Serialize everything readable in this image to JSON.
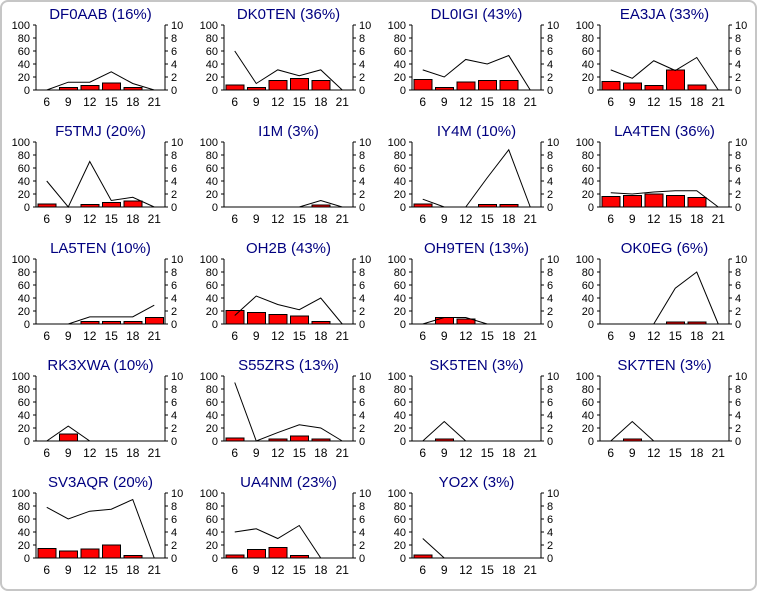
{
  "panel": {
    "background": "#ffffff",
    "border_color": "#c6c6c6"
  },
  "chart_defaults": {
    "x_tick_labels": [
      "6",
      "9",
      "12",
      "15",
      "18",
      "21"
    ],
    "left_axis": {
      "min": 0,
      "max": 100,
      "tick_labels": [
        "0",
        "20",
        "40",
        "60",
        "80",
        "100"
      ]
    },
    "right_axis": {
      "min": 0,
      "max": 10,
      "tick_labels": [
        "0",
        "2",
        "4",
        "6",
        "8",
        "10"
      ]
    },
    "colors": {
      "bar_fill": "#ff0000",
      "bar_stroke": "#000000",
      "line": "#000000",
      "axis": "#000000",
      "tick_label": "#000000",
      "title": "#000080"
    },
    "grid": "off",
    "legend": "none"
  },
  "chart_data": [
    {
      "type": "bar+line",
      "callsign": "DF0AAB",
      "title": "DF0AAB (16%)",
      "x": [
        6,
        9,
        12,
        15,
        18,
        21
      ],
      "bars_left_scale": [
        0,
        4,
        7,
        11,
        4,
        0
      ],
      "line_left_scale": [
        0,
        12,
        12,
        28,
        10,
        0
      ]
    },
    {
      "type": "bar+line",
      "callsign": "DK0TEN",
      "title": "DK0TEN (36%)",
      "x": [
        6,
        9,
        12,
        15,
        18,
        21
      ],
      "bars_left_scale": [
        8,
        4,
        15,
        18,
        15,
        0
      ],
      "line_left_scale": [
        60,
        10,
        31,
        22,
        31,
        0
      ]
    },
    {
      "type": "bar+line",
      "callsign": "DL0IGI",
      "title": "DL0IGI (43%)",
      "x": [
        6,
        9,
        12,
        15,
        18,
        21
      ],
      "bars_left_scale": [
        16,
        4,
        12,
        15,
        15,
        0
      ],
      "line_left_scale": [
        31,
        20,
        47,
        40,
        53,
        0
      ]
    },
    {
      "type": "bar+line",
      "callsign": "EA3JA",
      "title": "EA3JA (33%)",
      "x": [
        6,
        9,
        12,
        15,
        18,
        21
      ],
      "bars_left_scale": [
        13,
        11,
        7,
        31,
        8,
        0
      ],
      "line_left_scale": [
        31,
        18,
        45,
        30,
        50,
        0
      ]
    },
    {
      "type": "bar+line",
      "callsign": "F5TMJ",
      "title": "F5TMJ (20%)",
      "x": [
        6,
        9,
        12,
        15,
        18,
        21
      ],
      "bars_left_scale": [
        5,
        0,
        4,
        7,
        9,
        0
      ],
      "line_left_scale": [
        40,
        0,
        70,
        10,
        15,
        0
      ]
    },
    {
      "type": "bar+line",
      "callsign": "I1M",
      "title": "I1M (3%)",
      "x": [
        6,
        9,
        12,
        15,
        18,
        21
      ],
      "bars_left_scale": [
        0,
        0,
        0,
        0,
        3,
        0
      ],
      "line_left_scale": [
        0,
        0,
        0,
        0,
        10,
        0
      ]
    },
    {
      "type": "bar+line",
      "callsign": "IY4M",
      "title": "IY4M (10%)",
      "x": [
        6,
        9,
        12,
        15,
        18,
        21
      ],
      "bars_left_scale": [
        5,
        0,
        0,
        4,
        4,
        0
      ],
      "line_left_scale": [
        12,
        0,
        0,
        45,
        88,
        0
      ]
    },
    {
      "type": "bar+line",
      "callsign": "LA4TEN",
      "title": "LA4TEN (36%)",
      "x": [
        6,
        9,
        12,
        15,
        18,
        21
      ],
      "bars_left_scale": [
        16,
        18,
        20,
        18,
        15,
        0
      ],
      "line_left_scale": [
        22,
        20,
        23,
        25,
        25,
        0
      ]
    },
    {
      "type": "bar+line",
      "callsign": "LA5TEN",
      "title": "LA5TEN (10%)",
      "x": [
        6,
        9,
        12,
        15,
        18,
        21
      ],
      "bars_left_scale": [
        0,
        0,
        4,
        4,
        4,
        10
      ],
      "line_left_scale": [
        0,
        0,
        11,
        11,
        11,
        29
      ]
    },
    {
      "type": "bar+line",
      "callsign": "OH2B",
      "title": "OH2B (43%)",
      "x": [
        6,
        9,
        12,
        15,
        18,
        21
      ],
      "bars_left_scale": [
        21,
        18,
        15,
        12,
        4,
        0
      ],
      "line_left_scale": [
        13,
        43,
        30,
        22,
        40,
        0
      ]
    },
    {
      "type": "bar+line",
      "callsign": "OH9TEN",
      "title": "OH9TEN (13%)",
      "x": [
        6,
        9,
        12,
        15,
        18,
        21
      ],
      "bars_left_scale": [
        0,
        10,
        8,
        0,
        0,
        0
      ],
      "line_left_scale": [
        0,
        10,
        10,
        0,
        0,
        0
      ]
    },
    {
      "type": "bar+line",
      "callsign": "OK0EG",
      "title": "OK0EG (6%)",
      "x": [
        6,
        9,
        12,
        15,
        18,
        21
      ],
      "bars_left_scale": [
        0,
        0,
        0,
        3,
        3,
        0
      ],
      "line_left_scale": [
        0,
        0,
        0,
        55,
        80,
        0
      ]
    },
    {
      "type": "bar+line",
      "callsign": "RK3XWA",
      "title": "RK3XWA (10%)",
      "x": [
        6,
        9,
        12,
        15,
        18,
        21
      ],
      "bars_left_scale": [
        0,
        11,
        0,
        0,
        0,
        0
      ],
      "line_left_scale": [
        0,
        23,
        0,
        0,
        0,
        0
      ]
    },
    {
      "type": "bar+line",
      "callsign": "S55ZRS",
      "title": "S55ZRS (13%)",
      "x": [
        6,
        9,
        12,
        15,
        18,
        21
      ],
      "bars_left_scale": [
        5,
        0,
        3,
        8,
        3,
        0
      ],
      "line_left_scale": [
        90,
        0,
        13,
        25,
        20,
        0
      ]
    },
    {
      "type": "bar+line",
      "callsign": "SK5TEN",
      "title": "SK5TEN (3%)",
      "x": [
        6,
        9,
        12,
        15,
        18,
        21
      ],
      "bars_left_scale": [
        0,
        3,
        0,
        0,
        0,
        0
      ],
      "line_left_scale": [
        0,
        30,
        0,
        0,
        0,
        0
      ]
    },
    {
      "type": "bar+line",
      "callsign": "SK7TEN",
      "title": "SK7TEN (3%)",
      "x": [
        6,
        9,
        12,
        15,
        18,
        21
      ],
      "bars_left_scale": [
        0,
        3,
        0,
        0,
        0,
        0
      ],
      "line_left_scale": [
        0,
        30,
        0,
        0,
        0,
        0
      ]
    },
    {
      "type": "bar+line",
      "callsign": "SV3AQR",
      "title": "SV3AQR (20%)",
      "x": [
        6,
        9,
        12,
        15,
        18,
        21
      ],
      "bars_left_scale": [
        15,
        11,
        14,
        20,
        4,
        0
      ],
      "line_left_scale": [
        78,
        60,
        72,
        75,
        90,
        0
      ]
    },
    {
      "type": "bar+line",
      "callsign": "UA4NM",
      "title": "UA4NM (23%)",
      "x": [
        6,
        9,
        12,
        15,
        18,
        21
      ],
      "bars_left_scale": [
        5,
        13,
        16,
        4,
        0,
        0
      ],
      "line_left_scale": [
        40,
        45,
        30,
        50,
        0,
        0
      ]
    },
    {
      "type": "bar+line",
      "callsign": "YO2X",
      "title": "YO2X (3%)",
      "x": [
        6,
        9,
        12,
        15,
        18,
        21
      ],
      "bars_left_scale": [
        5,
        0,
        0,
        0,
        0,
        0
      ],
      "line_left_scale": [
        30,
        0,
        0,
        0,
        0,
        0
      ]
    }
  ]
}
